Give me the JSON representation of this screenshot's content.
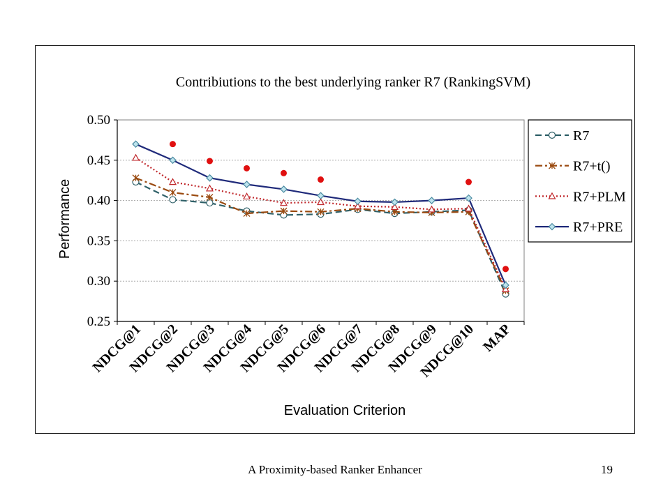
{
  "footer": {
    "title": "A Proximity-based Ranker Enhancer",
    "page_number": "19"
  },
  "chart_data": {
    "type": "line",
    "title": "Contribiutions to the best underlying ranker R7 (RankingSVM)",
    "xlabel": "Evaluation Criterion",
    "ylabel": "Performance",
    "ylim": [
      0.25,
      0.5
    ],
    "yticks": [
      "0.50",
      "0.45",
      "0.40",
      "0.35",
      "0.30",
      "0.25"
    ],
    "grid": true,
    "legend_position": "right",
    "categories": [
      "NDCG@1",
      "NDCG@2",
      "NDCG@3",
      "NDCG@4",
      "NDCG@5",
      "NDCG@6",
      "NDCG@7",
      "NDCG@8",
      "NDCG@9",
      "NDCG@10",
      "MAP"
    ],
    "series": [
      {
        "name": "R7",
        "color": "#2f6068",
        "dash": "dashed",
        "marker": "circle",
        "values": [
          0.423,
          0.401,
          0.397,
          0.387,
          0.382,
          0.383,
          0.389,
          0.384,
          0.386,
          0.388,
          0.284
        ]
      },
      {
        "name": "R7+t()",
        "color": "#9a4a10",
        "dash": "dashdot",
        "marker": "asterisk",
        "values": [
          0.428,
          0.41,
          0.404,
          0.384,
          0.387,
          0.386,
          0.39,
          0.386,
          0.385,
          0.386,
          0.288
        ]
      },
      {
        "name": "R7+PLM",
        "color": "#c0282c",
        "dash": "dotted",
        "marker": "triangle",
        "values": [
          0.453,
          0.423,
          0.415,
          0.405,
          0.397,
          0.398,
          0.393,
          0.392,
          0.389,
          0.39,
          0.29
        ]
      },
      {
        "name": "R7+PRE",
        "color": "#1f2a7a",
        "dash": "solid",
        "marker": "diamond",
        "values": [
          0.47,
          0.45,
          0.428,
          0.42,
          0.414,
          0.406,
          0.399,
          0.398,
          0.4,
          0.403,
          0.295
        ]
      }
    ],
    "extra_points": {
      "color": "#e01010",
      "values": [
        null,
        0.47,
        0.449,
        0.44,
        0.434,
        0.426,
        null,
        null,
        null,
        0.423,
        0.315
      ]
    }
  }
}
